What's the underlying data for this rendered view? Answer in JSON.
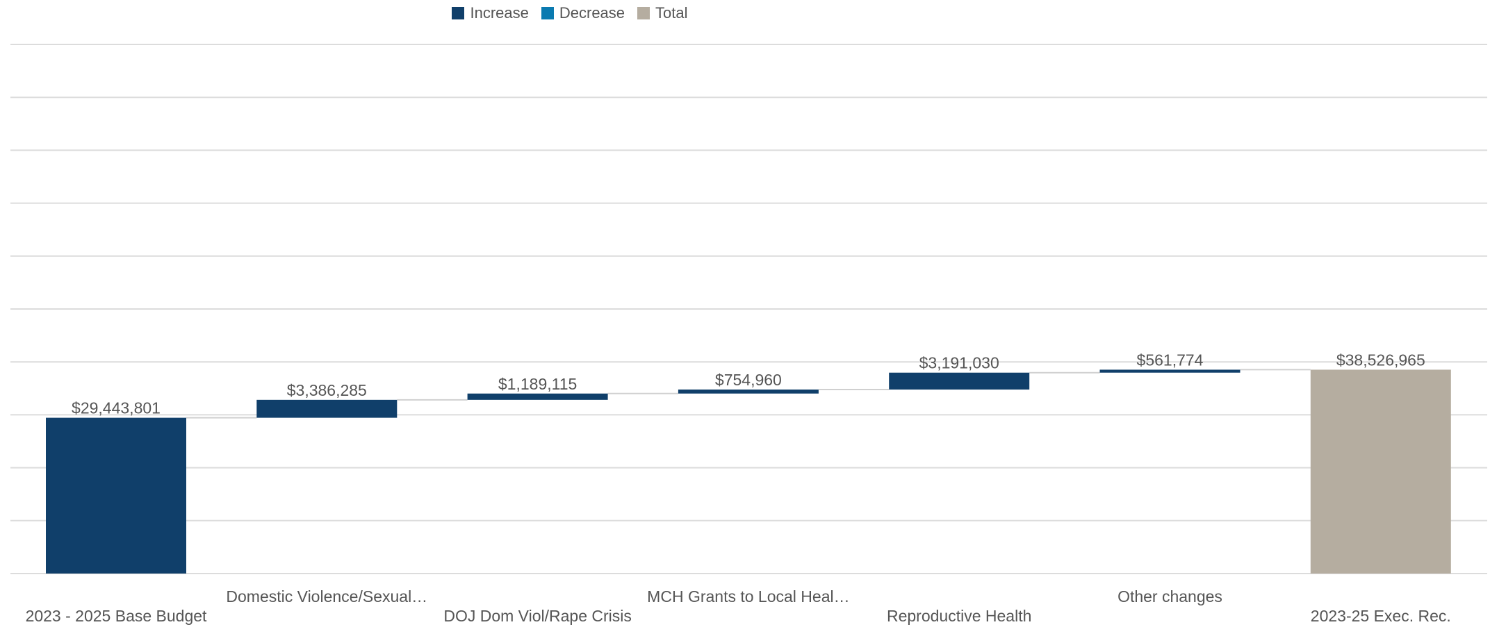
{
  "legend": {
    "increase": {
      "label": "Increase",
      "color": "#103f6a"
    },
    "decrease": {
      "label": "Decrease",
      "color": "#0a7ab0"
    },
    "total": {
      "label": "Total",
      "color": "#b5ada0"
    }
  },
  "chart_data": {
    "type": "bar",
    "subtype": "waterfall",
    "title": "",
    "xlabel": "",
    "ylabel": "",
    "grid": true,
    "legend_position": "top-center",
    "categories": [
      "2023 - 2025 Base Budget",
      "Domestic Violence/Sexual…",
      "DOJ Dom Viol/Rape Crisis",
      "MCH Grants to Local Heal…",
      "Reproductive Health",
      "Other changes",
      "2023-25 Exec. Rec."
    ],
    "values": [
      29443801,
      3386285,
      1189115,
      754960,
      3191030,
      561774,
      38526965
    ],
    "kinds": [
      "increase",
      "increase",
      "increase",
      "increase",
      "increase",
      "increase",
      "total"
    ],
    "labels": [
      "$29,443,801",
      "$3,386,285",
      "$1,189,115",
      "$754,960",
      "$3,191,030",
      "$561,774",
      "$38,526,965"
    ],
    "ylim": [
      0,
      100000000
    ]
  }
}
